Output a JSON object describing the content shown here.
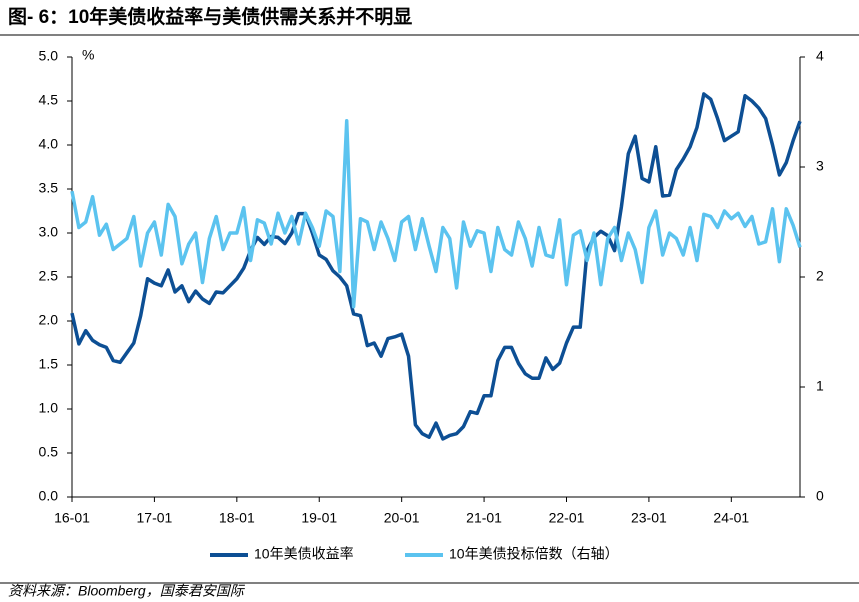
{
  "title": "图- 6：10年美债收益率与美债供需关系并不明显",
  "source": "资料来源：Bloomberg，国泰君安国际",
  "chart_data": {
    "type": "line",
    "y_unit": "%",
    "categories": [
      "16-01",
      null,
      null,
      null,
      null,
      null,
      null,
      null,
      null,
      null,
      null,
      null,
      "17-01",
      null,
      null,
      null,
      null,
      null,
      null,
      null,
      null,
      null,
      null,
      null,
      "18-01",
      null,
      null,
      null,
      null,
      null,
      null,
      null,
      null,
      null,
      null,
      null,
      "19-01",
      null,
      null,
      null,
      null,
      null,
      null,
      null,
      null,
      null,
      null,
      null,
      "20-01",
      null,
      null,
      null,
      null,
      null,
      null,
      null,
      null,
      null,
      null,
      null,
      "21-01",
      null,
      null,
      null,
      null,
      null,
      null,
      null,
      null,
      null,
      null,
      null,
      "22-01",
      null,
      null,
      null,
      null,
      null,
      null,
      null,
      null,
      null,
      null,
      null,
      "23-01",
      null,
      null,
      null,
      null,
      null,
      null,
      null,
      null,
      null,
      null,
      null,
      "24-01",
      null,
      null,
      null,
      null,
      null,
      null,
      null,
      null,
      null,
      null
    ],
    "ylim": [
      0,
      5
    ],
    "yticks": [
      {
        "value": 0,
        "label": "0.0"
      },
      {
        "value": 0.5,
        "label": "0.5"
      },
      {
        "value": 1,
        "label": "1.0"
      },
      {
        "value": 1.5,
        "label": "1.5"
      },
      {
        "value": 2,
        "label": "2.0"
      },
      {
        "value": 2.5,
        "label": "2.5"
      },
      {
        "value": 3,
        "label": "3.0"
      },
      {
        "value": 3.5,
        "label": "3.5"
      },
      {
        "value": 4,
        "label": "4.0"
      },
      {
        "value": 4.5,
        "label": "4.5"
      },
      {
        "value": 5,
        "label": "5.0"
      }
    ],
    "y2lim": [
      0,
      4
    ],
    "y2ticks": [
      0,
      1,
      2,
      3,
      4
    ],
    "series": [
      {
        "name": "10年美债收益率",
        "color": "#0d4f94",
        "values": [
          2.09,
          1.74,
          1.89,
          1.78,
          1.73,
          1.7,
          1.55,
          1.53,
          1.64,
          1.75,
          2.06,
          2.48,
          2.43,
          2.4,
          2.58,
          2.33,
          2.4,
          2.22,
          2.34,
          2.25,
          2.2,
          2.33,
          2.32,
          2.4,
          2.48,
          2.6,
          2.8,
          2.95,
          2.87,
          2.96,
          2.95,
          2.88,
          3.0,
          3.22,
          3.22,
          3.0,
          2.75,
          2.7,
          2.57,
          2.5,
          2.4,
          2.08,
          2.06,
          1.72,
          1.75,
          1.6,
          1.8,
          1.82,
          1.85,
          1.6,
          0.82,
          0.72,
          0.68,
          0.84,
          0.66,
          0.7,
          0.72,
          0.8,
          0.97,
          0.95,
          1.15,
          1.15,
          1.55,
          1.7,
          1.7,
          1.52,
          1.4,
          1.35,
          1.35,
          1.58,
          1.45,
          1.52,
          1.75,
          1.93,
          1.93,
          2.8,
          2.95,
          3.02,
          2.97,
          2.8,
          3.3,
          3.9,
          4.1,
          3.62,
          3.58,
          3.98,
          3.42,
          3.43,
          3.72,
          3.84,
          3.98,
          4.2,
          4.58,
          4.52,
          4.3,
          4.05,
          4.1,
          4.15,
          4.56,
          4.5,
          4.42,
          4.3,
          4.0,
          3.66,
          3.8,
          4.05,
          4.27
        ]
      },
      {
        "name": "10年美债投标倍数（右轴）",
        "color": "#5bc3ef",
        "axis": "y2",
        "values": [
          2.78,
          2.45,
          2.5,
          2.73,
          2.38,
          2.48,
          2.25,
          2.3,
          2.35,
          2.55,
          2.1,
          2.4,
          2.5,
          2.2,
          2.66,
          2.55,
          2.12,
          2.3,
          2.4,
          1.95,
          2.35,
          2.55,
          2.25,
          2.4,
          2.4,
          2.63,
          2.15,
          2.52,
          2.49,
          2.3,
          2.58,
          2.4,
          2.55,
          2.3,
          2.58,
          2.45,
          2.28,
          2.6,
          2.55,
          2.05,
          3.42,
          1.73,
          2.53,
          2.5,
          2.25,
          2.5,
          2.35,
          2.15,
          2.5,
          2.55,
          2.25,
          2.53,
          2.28,
          2.05,
          2.45,
          2.35,
          1.9,
          2.5,
          2.28,
          2.42,
          2.4,
          2.05,
          2.45,
          2.25,
          2.2,
          2.5,
          2.35,
          2.1,
          2.45,
          2.2,
          2.18,
          2.52,
          1.93,
          2.38,
          2.42,
          2.15,
          2.4,
          1.93,
          2.35,
          2.45,
          2.15,
          2.4,
          2.25,
          1.95,
          2.45,
          2.6,
          2.2,
          2.4,
          2.35,
          2.2,
          2.45,
          2.15,
          2.57,
          2.55,
          2.45,
          2.6,
          2.53,
          2.58,
          2.46,
          2.55,
          2.3,
          2.32,
          2.62,
          2.14,
          2.62,
          2.47,
          2.27
        ]
      }
    ]
  }
}
